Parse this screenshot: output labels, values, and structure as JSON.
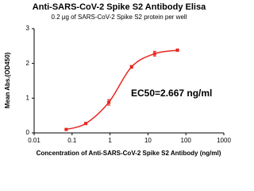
{
  "chart_data": {
    "type": "line",
    "title": "Anti-SARS-CoV-2 Spike S2 Antibody Elisa",
    "subtitle": "0.2 μg of SARS-CoV-2 Spike S2 protein per well",
    "x_label": "Concentration of Anti-SARS-CoV-2 Spike S2 Antibody (ng/ml)",
    "y_label": "Mean Abs.(OD450)",
    "annotation": "EC50=2.667 ng/ml",
    "x": [
      0.07,
      0.23,
      0.93,
      3.7,
      15,
      60
    ],
    "series": [
      {
        "color": "#e8261f",
        "values": [
          0.1,
          0.27,
          0.88,
          1.9,
          2.28,
          2.38
        ],
        "errors": [
          0.02,
          0.03,
          0.08,
          0.04,
          0.07,
          0.03
        ]
      }
    ],
    "xscale": "log",
    "xlim": [
      0.01,
      1000
    ],
    "xticks": [
      0.01,
      0.1,
      1,
      10,
      100,
      1000
    ],
    "ylim": [
      0,
      3
    ],
    "yticks": [
      0,
      1,
      2,
      3
    ],
    "grid": false
  }
}
